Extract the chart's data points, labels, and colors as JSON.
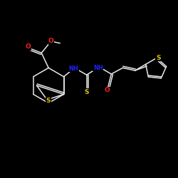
{
  "bg_color": "#000000",
  "bond_color": "#e8e8e8",
  "atom_colors": {
    "O": "#ff2020",
    "N": "#2020ff",
    "S": "#e0c000",
    "C": "#e8e8e8"
  },
  "figsize": [
    2.5,
    2.5
  ],
  "dpi": 100,
  "lw": 1.1,
  "fs": 6.5
}
